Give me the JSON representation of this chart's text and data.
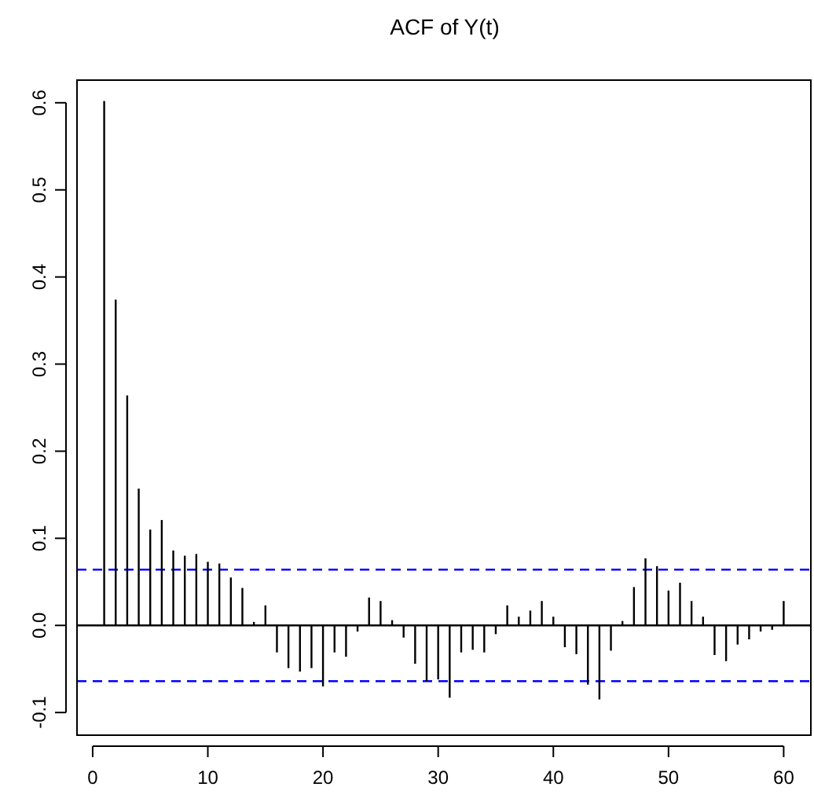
{
  "chart_data": {
    "type": "bar",
    "title": "ACF of Y(t)",
    "x": [
      1,
      2,
      3,
      4,
      5,
      6,
      7,
      8,
      9,
      10,
      11,
      12,
      13,
      14,
      15,
      16,
      17,
      18,
      19,
      20,
      21,
      22,
      23,
      24,
      25,
      26,
      27,
      28,
      29,
      30,
      31,
      32,
      33,
      34,
      35,
      36,
      37,
      38,
      39,
      40,
      41,
      42,
      43,
      44,
      45,
      46,
      47,
      48,
      49,
      50,
      51,
      52,
      53,
      54,
      55,
      56,
      57,
      58,
      59,
      60
    ],
    "values": [
      0.602,
      0.374,
      0.264,
      0.157,
      0.11,
      0.121,
      0.086,
      0.08,
      0.082,
      0.073,
      0.071,
      0.055,
      0.043,
      0.004,
      0.023,
      -0.031,
      -0.049,
      -0.053,
      -0.049,
      -0.07,
      -0.031,
      -0.036,
      -0.007,
      0.032,
      0.028,
      0.006,
      -0.014,
      -0.044,
      -0.064,
      -0.062,
      -0.083,
      -0.031,
      -0.028,
      -0.031,
      -0.01,
      0.023,
      0.01,
      0.017,
      0.028,
      0.01,
      -0.025,
      -0.033,
      -0.068,
      -0.085,
      -0.029,
      0.005,
      0.044,
      0.077,
      0.068,
      0.04,
      0.049,
      0.028,
      0.01,
      -0.034,
      -0.041,
      -0.022,
      -0.016,
      -0.007,
      -0.005,
      0.028
    ],
    "color": "#000000",
    "xlim": [
      -1.36,
      62.36
    ],
    "ylim": [
      -0.126,
      0.626
    ],
    "xticks": [
      0,
      10,
      20,
      30,
      40,
      50,
      60
    ],
    "yticks": [
      {
        "value": -0.1,
        "label": "-0.1"
      },
      {
        "value": 0,
        "label": "0.0"
      },
      0.1,
      0.2,
      0.3,
      0.4,
      0.5,
      0.6
    ],
    "ref_lines": [
      {
        "axis": "y",
        "value": 0,
        "color": "#000000",
        "line_style": "solid"
      },
      {
        "axis": "y",
        "value": 0.064,
        "color": "#0000ff",
        "line_style": "dashed"
      },
      {
        "axis": "y",
        "value": -0.064,
        "color": "#0000ff",
        "line_style": "dashed"
      }
    ],
    "grid": false
  }
}
